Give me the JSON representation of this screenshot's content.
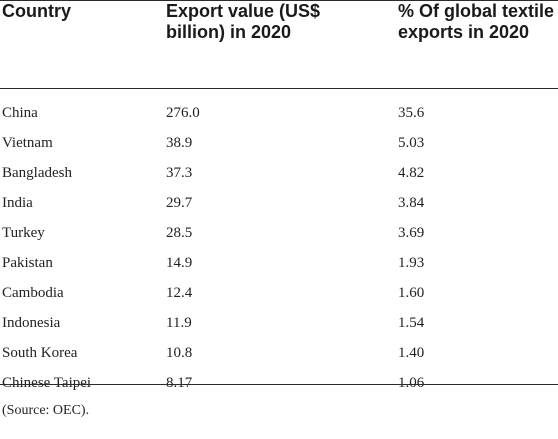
{
  "table": {
    "headers": {
      "country": "Country",
      "export_value": "Export value (US$ billion) in 2020",
      "pct_global": "% Of global textile exports in 2020"
    },
    "rows": [
      {
        "country": "China",
        "export_value": "276.0",
        "pct_global": "35.6"
      },
      {
        "country": "Vietnam",
        "export_value": "38.9",
        "pct_global": "5.03"
      },
      {
        "country": "Bangladesh",
        "export_value": "37.3",
        "pct_global": "4.82"
      },
      {
        "country": "India",
        "export_value": "29.7",
        "pct_global": "3.84"
      },
      {
        "country": "Turkey",
        "export_value": "28.5",
        "pct_global": "3.69"
      },
      {
        "country": "Pakistan",
        "export_value": "14.9",
        "pct_global": "1.93"
      },
      {
        "country": "Cambodia",
        "export_value": "12.4",
        "pct_global": "1.60"
      },
      {
        "country": "Indonesia",
        "export_value": "11.9",
        "pct_global": "1.54"
      },
      {
        "country": "South Korea",
        "export_value": "10.8",
        "pct_global": "1.40"
      },
      {
        "country": "Chinese Taipei",
        "export_value": "8.17",
        "pct_global": "1.06"
      }
    ],
    "source_note": "(Source: OEC)."
  }
}
